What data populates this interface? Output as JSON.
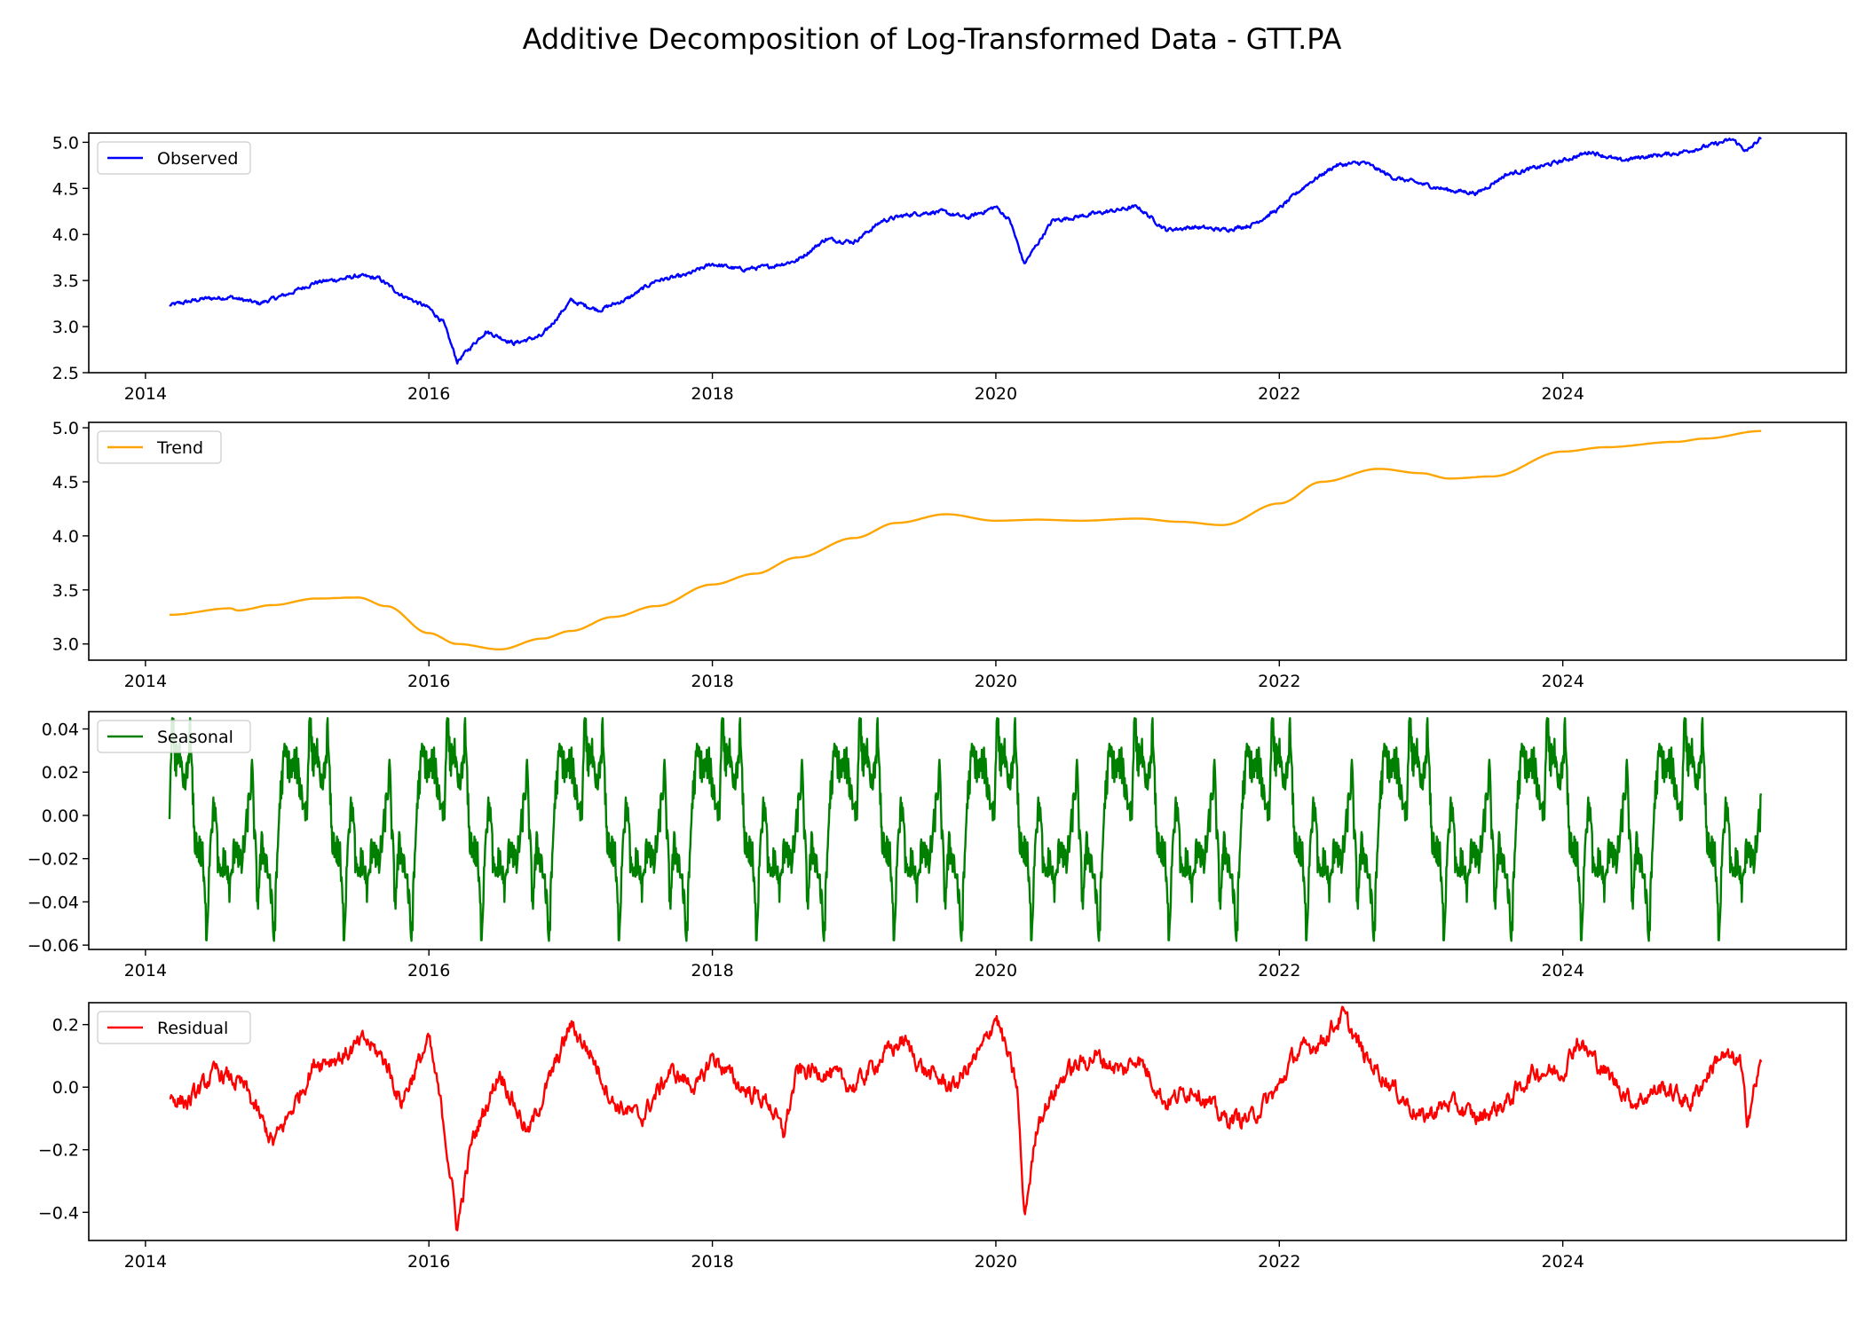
{
  "title": "Additive Decomposition of Log-Transformed Data - GTT.PA",
  "chart_data": [
    {
      "type": "line",
      "series_name": "Observed",
      "color": "#0000ff",
      "x_ticks": [
        "2014",
        "2016",
        "2018",
        "2020",
        "2022",
        "2024"
      ],
      "y_ticks": [
        "2.5",
        "3.0",
        "3.5",
        "4.0",
        "4.5",
        "5.0"
      ],
      "ylim": [
        2.5,
        5.1
      ],
      "xlim": [
        2013.6,
        2026.0
      ],
      "legend": "upper-left",
      "x": [
        2014.17,
        2014.4,
        2014.6,
        2014.8,
        2015.0,
        2015.2,
        2015.4,
        2015.5,
        2015.65,
        2015.8,
        2016.0,
        2016.1,
        2016.2,
        2016.4,
        2016.6,
        2016.8,
        2017.0,
        2017.2,
        2017.4,
        2017.6,
        2017.8,
        2018.0,
        2018.2,
        2018.4,
        2018.6,
        2018.8,
        2019.0,
        2019.2,
        2019.4,
        2019.6,
        2019.8,
        2020.0,
        2020.1,
        2020.2,
        2020.4,
        2020.6,
        2020.8,
        2021.0,
        2021.2,
        2021.4,
        2021.6,
        2021.8,
        2022.0,
        2022.2,
        2022.4,
        2022.6,
        2022.8,
        2023.0,
        2023.2,
        2023.4,
        2023.6,
        2023.8,
        2024.0,
        2024.2,
        2024.4,
        2024.6,
        2024.8,
        2025.0,
        2025.2,
        2025.3,
        2025.4
      ],
      "y": [
        3.23,
        3.3,
        3.32,
        3.25,
        3.35,
        3.48,
        3.52,
        3.55,
        3.52,
        3.35,
        3.2,
        3.05,
        2.62,
        2.95,
        2.82,
        2.9,
        3.28,
        3.18,
        3.3,
        3.5,
        3.55,
        3.68,
        3.62,
        3.65,
        3.72,
        3.95,
        3.92,
        4.15,
        4.22,
        4.25,
        4.18,
        4.3,
        4.15,
        3.68,
        4.15,
        4.2,
        4.25,
        4.3,
        4.05,
        4.08,
        4.05,
        4.1,
        4.28,
        4.55,
        4.75,
        4.78,
        4.62,
        4.55,
        4.48,
        4.45,
        4.65,
        4.72,
        4.8,
        4.9,
        4.8,
        4.85,
        4.88,
        4.95,
        5.03,
        4.9,
        5.05
      ]
    },
    {
      "type": "line",
      "series_name": "Trend",
      "color": "#ffa500",
      "x_ticks": [
        "2014",
        "2016",
        "2018",
        "2020",
        "2022",
        "2024"
      ],
      "y_ticks": [
        "3.0",
        "3.5",
        "4.0",
        "4.5",
        "5.0"
      ],
      "ylim": [
        2.85,
        5.05
      ],
      "xlim": [
        2013.6,
        2026.0
      ],
      "legend": "upper-left",
      "x": [
        2014.17,
        2014.6,
        2014.65,
        2014.9,
        2015.2,
        2015.5,
        2015.7,
        2016.0,
        2016.2,
        2016.5,
        2016.8,
        2017.0,
        2017.3,
        2017.6,
        2018.0,
        2018.3,
        2018.6,
        2019.0,
        2019.3,
        2019.65,
        2020.0,
        2020.3,
        2020.6,
        2021.0,
        2021.3,
        2021.6,
        2022.0,
        2022.3,
        2022.7,
        2023.0,
        2023.2,
        2023.5,
        2024.0,
        2024.3,
        2024.8,
        2025.0,
        2025.4
      ],
      "y": [
        3.27,
        3.33,
        3.31,
        3.36,
        3.42,
        3.43,
        3.35,
        3.1,
        3.0,
        2.95,
        3.05,
        3.12,
        3.25,
        3.35,
        3.55,
        3.65,
        3.8,
        3.98,
        4.12,
        4.2,
        4.14,
        4.15,
        4.14,
        4.16,
        4.13,
        4.1,
        4.3,
        4.5,
        4.62,
        4.58,
        4.53,
        4.55,
        4.78,
        4.82,
        4.87,
        4.9,
        4.97
      ]
    },
    {
      "type": "line",
      "series_name": "Seasonal",
      "color": "#008000",
      "x_ticks": [
        "2014",
        "2016",
        "2018",
        "2020",
        "2022",
        "2024"
      ],
      "y_ticks": [
        "0.04",
        "0.02",
        "0.00",
        "−0.02",
        "−0.04",
        "−0.06"
      ],
      "ylim": [
        -0.062,
        0.048
      ],
      "xlim": [
        2013.6,
        2026.0
      ],
      "legend": "upper-left",
      "period_years": 0.97,
      "start": 2014.17,
      "end": 2025.4,
      "pattern_phase": [
        0.0,
        0.02,
        0.04,
        0.07,
        0.1,
        0.13,
        0.15,
        0.18,
        0.21,
        0.24,
        0.27,
        0.3,
        0.33,
        0.36,
        0.4,
        0.44,
        0.48,
        0.52,
        0.56,
        0.6,
        0.64,
        0.67,
        0.7,
        0.73,
        0.76,
        0.8,
        0.84,
        0.88,
        0.92,
        0.96,
        1.0
      ],
      "pattern_values": [
        0.0,
        0.045,
        0.025,
        0.03,
        0.01,
        0.02,
        0.04,
        -0.01,
        -0.015,
        -0.02,
        -0.055,
        -0.005,
        0.005,
        -0.03,
        -0.02,
        -0.035,
        -0.01,
        -0.025,
        -0.005,
        0.02,
        -0.04,
        -0.015,
        -0.02,
        -0.03,
        -0.058,
        0.005,
        0.03,
        0.02,
        0.025,
        0.01,
        0.0
      ]
    },
    {
      "type": "line",
      "series_name": "Residual",
      "color": "#ff0000",
      "x_ticks": [
        "2014",
        "2016",
        "2018",
        "2020",
        "2022",
        "2024"
      ],
      "y_ticks": [
        "0.2",
        "0.0",
        "−0.2",
        "−0.4"
      ],
      "ylim": [
        -0.49,
        0.27
      ],
      "xlim": [
        2013.6,
        2026.0
      ],
      "legend": "upper-left",
      "x": [
        2014.17,
        2014.3,
        2014.5,
        2014.7,
        2014.9,
        2015.0,
        2015.2,
        2015.4,
        2015.55,
        2015.7,
        2015.8,
        2016.0,
        2016.1,
        2016.2,
        2016.3,
        2016.5,
        2016.7,
        2016.9,
        2017.0,
        2017.15,
        2017.3,
        2017.5,
        2017.7,
        2017.9,
        2018.0,
        2018.2,
        2018.4,
        2018.5,
        2018.6,
        2018.8,
        2019.0,
        2019.2,
        2019.35,
        2019.5,
        2019.7,
        2019.9,
        2020.0,
        2020.15,
        2020.2,
        2020.3,
        2020.5,
        2020.7,
        2020.9,
        2021.0,
        2021.2,
        2021.4,
        2021.6,
        2021.8,
        2022.0,
        2022.1,
        2022.3,
        2022.45,
        2022.6,
        2022.8,
        2023.0,
        2023.2,
        2023.4,
        2023.6,
        2023.8,
        2024.0,
        2024.1,
        2024.3,
        2024.5,
        2024.7,
        2024.9,
        2025.1,
        2025.25,
        2025.3,
        2025.4
      ],
      "y": [
        -0.03,
        -0.05,
        0.05,
        0.0,
        -0.18,
        -0.1,
        0.08,
        0.1,
        0.15,
        0.08,
        -0.05,
        0.15,
        -0.1,
        -0.45,
        -0.18,
        0.05,
        -0.15,
        0.08,
        0.2,
        0.1,
        -0.05,
        -0.1,
        0.05,
        0.0,
        0.1,
        0.0,
        -0.05,
        -0.15,
        0.05,
        0.05,
        0.0,
        0.1,
        0.15,
        0.05,
        0.0,
        0.12,
        0.23,
        0.0,
        -0.42,
        -0.1,
        0.05,
        0.1,
        0.05,
        0.1,
        -0.05,
        0.0,
        -0.1,
        -0.1,
        0.0,
        0.1,
        0.15,
        0.23,
        0.1,
        0.0,
        -0.1,
        -0.05,
        -0.1,
        -0.05,
        0.05,
        0.05,
        0.15,
        0.05,
        -0.05,
        0.0,
        -0.05,
        0.1,
        0.08,
        -0.1,
        0.08
      ]
    }
  ]
}
